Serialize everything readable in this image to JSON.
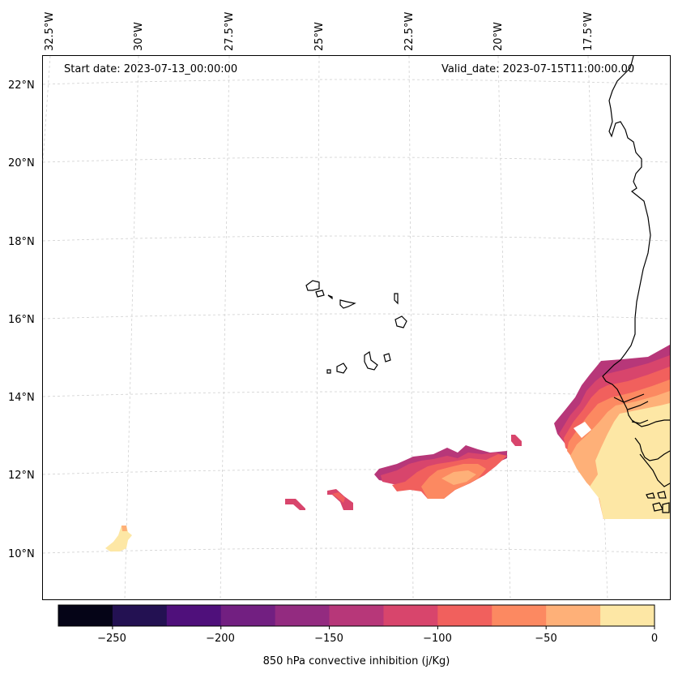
{
  "map": {
    "start_label": "Start date: 2023-07-13_00:00:00",
    "valid_label": "Valid_date: 2023-07-15T11:00:00.00",
    "lon_labels": [
      "32.5°W",
      "30°W",
      "27.5°W",
      "25°W",
      "22.5°W",
      "20°W",
      "17.5°W"
    ],
    "lat_labels": [
      "22°N",
      "20°N",
      "18°N",
      "16°N",
      "14°N",
      "12°N",
      "10°N"
    ],
    "features": [
      "Cape Verde islands",
      "West African coastline",
      "convective inhibition contours"
    ]
  },
  "colorbar": {
    "title": "850 hPa convective inhibition (j/Kg)",
    "tick_labels": [
      "−250",
      "−200",
      "−150",
      "−100",
      "−50",
      "0"
    ],
    "levels": [
      -275,
      -250,
      -225,
      -200,
      -175,
      -150,
      -125,
      -100,
      -75,
      -50,
      -25,
      0
    ],
    "colors": [
      "#050417",
      "#231152",
      "#4f107b",
      "#721f81",
      "#932b80",
      "#b73779",
      "#d8456c",
      "#f1605d",
      "#fc8961",
      "#feb078",
      "#fde7a5"
    ]
  }
}
